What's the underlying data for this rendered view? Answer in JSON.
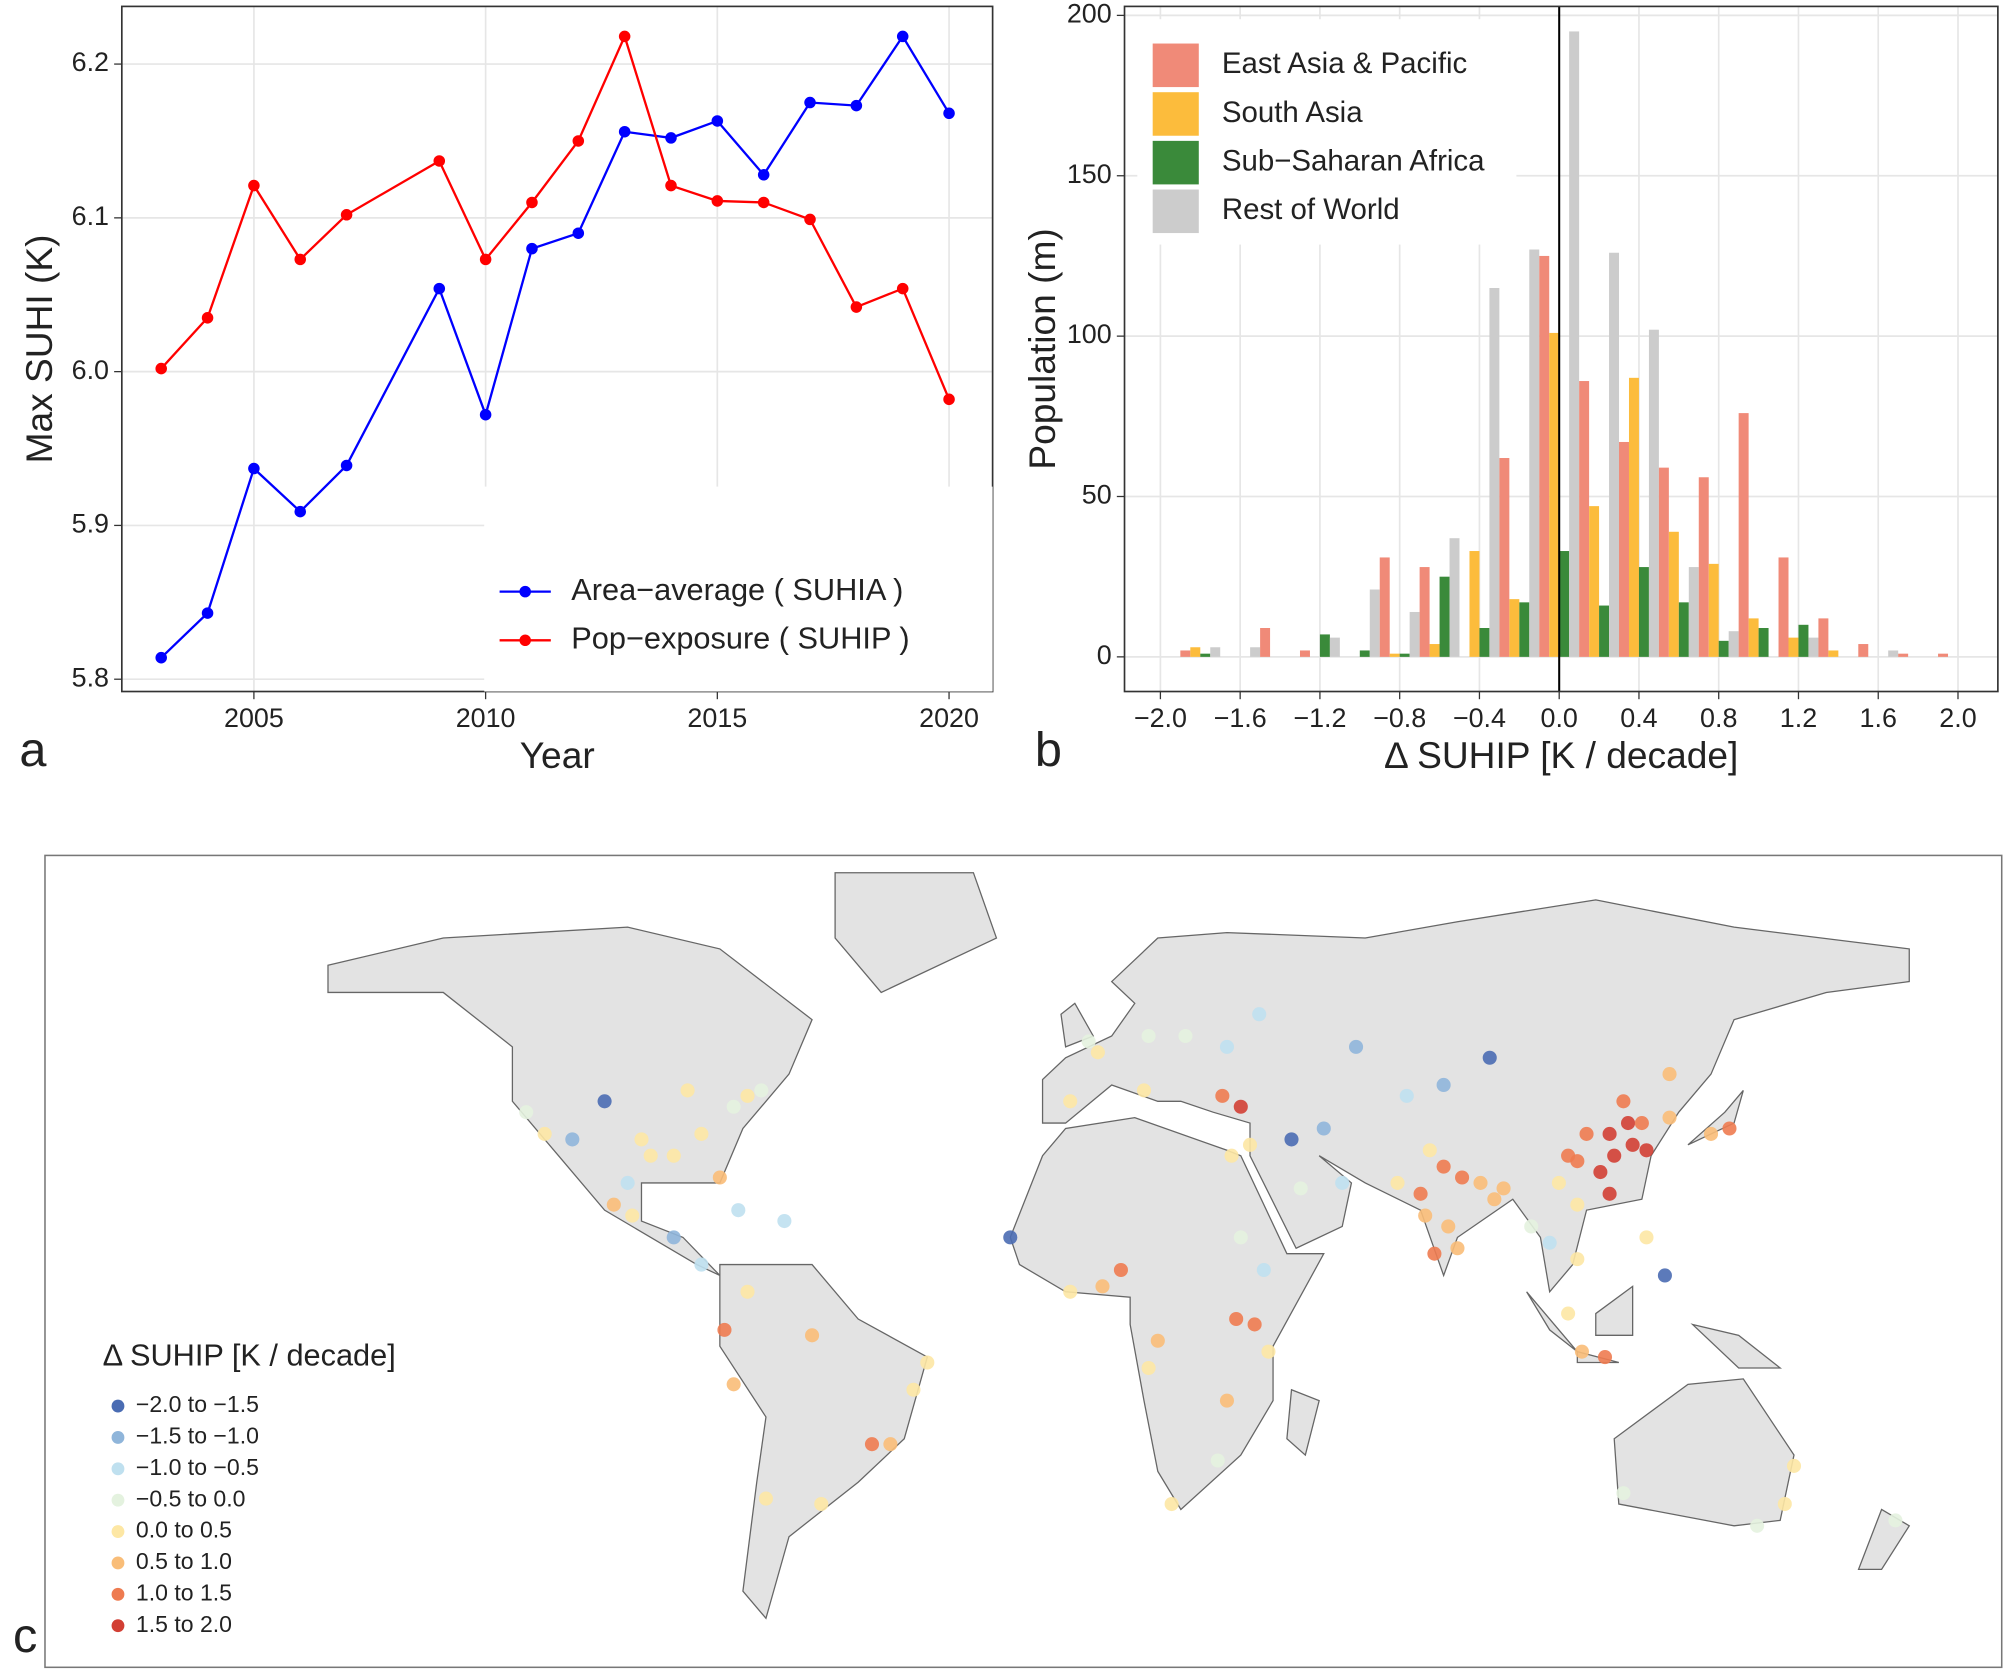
{
  "chart_data": [
    {
      "type": "line",
      "panel_label": "a",
      "xlabel": "Year",
      "ylabel": "Max SUHI (K)",
      "x": [
        2003,
        2004,
        2005,
        2006,
        2007,
        2009,
        2010,
        2011,
        2012,
        2013,
        2014,
        2015,
        2016,
        2017,
        2018,
        2019,
        2020
      ],
      "series": [
        {
          "name": "Area−average ( SUHIA )",
          "color": "#0000ff",
          "values": [
            5.814,
            5.843,
            5.937,
            5.909,
            5.939,
            6.054,
            5.972,
            6.08,
            6.09,
            6.156,
            6.152,
            6.163,
            6.128,
            6.175,
            6.173,
            6.218,
            6.168
          ]
        },
        {
          "name": "Pop−exposure ( SUHIP )",
          "color": "#ff0000",
          "values": [
            6.002,
            6.035,
            6.121,
            6.073,
            6.102,
            6.137,
            6.073,
            6.11,
            6.15,
            6.218,
            6.121,
            6.111,
            6.11,
            6.099,
            6.042,
            6.054,
            5.982
          ]
        }
      ],
      "xlim": [
        2002.15,
        2020.94
      ],
      "ylim": [
        5.792,
        6.2375
      ],
      "xticks": [
        2005,
        2010,
        2015,
        2020
      ],
      "yticks": [
        5.8,
        5.9,
        {
          "value": 6,
          "label": "6.0"
        },
        6.1,
        6.2
      ],
      "grid": true,
      "legend": "bottom-right"
    },
    {
      "type": "bar",
      "panel_label": "b",
      "xlabel": "Δ SUHIP [K / decade]",
      "ylabel": "Population (m)",
      "x": [
        -1.8,
        -1.6,
        -1.4,
        -1.2,
        -1.0,
        -0.8,
        -0.6,
        -0.4,
        -0.2,
        0,
        0.2,
        0.4,
        0.6,
        0.8,
        1.0,
        1.2,
        1.4,
        1.6,
        1.8,
        2.0
      ],
      "bin_width": 0.2,
      "series": [
        {
          "name": "East Asia & Pacific",
          "color": "#f08a78",
          "values": [
            2,
            0,
            9,
            2,
            0,
            31,
            28,
            0,
            62,
            125,
            86,
            67,
            59,
            56,
            76,
            31,
            12,
            4,
            1,
            1
          ]
        },
        {
          "name": "South Asia",
          "color": "#fcbc3c",
          "values": [
            3,
            0,
            0,
            0,
            0,
            1,
            4,
            33,
            18,
            101,
            47,
            87,
            39,
            29,
            12,
            6,
            2,
            0,
            0,
            0
          ]
        },
        {
          "name": "Sub−Saharan Africa",
          "color": "#3a8a3a",
          "values": [
            1,
            0,
            0,
            7,
            2,
            1,
            25,
            9,
            17,
            33,
            16,
            28,
            17,
            5,
            9,
            10,
            0,
            0,
            0,
            0
          ]
        },
        {
          "name": "Rest of World",
          "color": "#cccccc",
          "values": [
            3,
            3,
            0,
            6,
            21,
            14,
            37,
            115,
            127,
            195,
            126,
            102,
            28,
            8,
            0,
            6,
            0,
            2,
            0,
            0
          ]
        }
      ],
      "xlim": [
        -2.18,
        2.2
      ],
      "ylim": [
        -10.8,
        202.8
      ],
      "xticks": [
        {
          "value": -2,
          "label": "−2.0"
        },
        {
          "value": -1.6,
          "label": "−1.6"
        },
        {
          "value": -1.2,
          "label": "−1.2"
        },
        {
          "value": -0.8,
          "label": "−0.8"
        },
        {
          "value": -0.4,
          "label": "−0.4"
        },
        {
          "value": 0,
          "label": "0.0"
        },
        {
          "value": 0.4,
          "label": "0.4"
        },
        {
          "value": 0.8,
          "label": "0.8"
        },
        {
          "value": 1.2,
          "label": "1.2"
        },
        {
          "value": 1.6,
          "label": "1.6"
        },
        {
          "value": 2,
          "label": "2.0"
        }
      ],
      "yticks": [
        0,
        50,
        100,
        150,
        200
      ],
      "vline": 0,
      "grid": true,
      "legend": "top-left"
    },
    {
      "type": "map",
      "panel_label": "c",
      "legend_title": "Δ SUHIP [K / decade]",
      "legend": "bottom-left",
      "classes": [
        {
          "label": "−2.0 to −1.5",
          "color": "#4a6cb3"
        },
        {
          "label": "−1.5 to −1.0",
          "color": "#8fb5da"
        },
        {
          "label": "−1.0 to −0.5",
          "color": "#bfe0ef"
        },
        {
          "label": "−0.5 to 0.0",
          "color": "#e4f2df"
        },
        {
          "label": "0.0 to 0.5",
          "color": "#fde7a4"
        },
        {
          "label": "0.5 to 1.0",
          "color": "#f9bd78"
        },
        {
          "label": "1.0 to 1.5",
          "color": "#ee7b50"
        },
        {
          "label": "1.5 to 2.0",
          "color": "#d23f34"
        }
      ],
      "points": [
        [
          -74,
          41,
          4
        ],
        [
          -87,
          42,
          4
        ],
        [
          -118,
          34,
          4
        ],
        [
          -95,
          30,
          4
        ],
        [
          -84,
          34,
          4
        ],
        [
          -80,
          26,
          5
        ],
        [
          -105,
          40,
          0
        ],
        [
          -112,
          33,
          1
        ],
        [
          -97,
          33,
          4
        ],
        [
          -122,
          38,
          3
        ],
        [
          -77,
          39,
          3
        ],
        [
          -90,
          30,
          4
        ],
        [
          -71,
          42,
          3
        ],
        [
          -100,
          25,
          2
        ],
        [
          -99,
          19,
          4
        ],
        [
          -103,
          21,
          5
        ],
        [
          -90,
          15,
          1
        ],
        [
          -84,
          10,
          2
        ],
        [
          -74,
          5,
          4
        ],
        [
          -77,
          -12,
          5
        ],
        [
          -79,
          -2,
          6
        ],
        [
          -47,
          -23,
          6
        ],
        [
          -43,
          -23,
          5
        ],
        [
          -58,
          -34,
          4
        ],
        [
          -70,
          -33,
          4
        ],
        [
          -38,
          -13,
          4
        ],
        [
          -35,
          -8,
          4
        ],
        [
          -60,
          -3,
          5
        ],
        [
          -66,
          18,
          2
        ],
        [
          -76,
          20,
          2
        ],
        [
          0,
          51,
          3
        ],
        [
          2,
          49,
          4
        ],
        [
          13,
          52,
          3
        ],
        [
          12,
          42,
          4
        ],
        [
          -4,
          40,
          4
        ],
        [
          21,
          52,
          3
        ],
        [
          30,
          50,
          2
        ],
        [
          37,
          56,
          2
        ],
        [
          29,
          41,
          6
        ],
        [
          33,
          39,
          7
        ],
        [
          35,
          32,
          4
        ],
        [
          44,
          33,
          0
        ],
        [
          51,
          35,
          1
        ],
        [
          31,
          30,
          4
        ],
        [
          46,
          24,
          3
        ],
        [
          55,
          25,
          2
        ],
        [
          58,
          50,
          1
        ],
        [
          69,
          41,
          2
        ],
        [
          77,
          43,
          1
        ],
        [
          87,
          48,
          0
        ],
        [
          73,
          19,
          5
        ],
        [
          77,
          28,
          6
        ],
        [
          88,
          22,
          5
        ],
        [
          80,
          13,
          5
        ],
        [
          78,
          17,
          5
        ],
        [
          81,
          26,
          6
        ],
        [
          85,
          25,
          5
        ],
        [
          72,
          23,
          6
        ],
        [
          74,
          31,
          4
        ],
        [
          67,
          25,
          4
        ],
        [
          90,
          24,
          5
        ],
        [
          75,
          12,
          6
        ],
        [
          116,
          40,
          6
        ],
        [
          121,
          31,
          7
        ],
        [
          113,
          23,
          7
        ],
        [
          114,
          30,
          7
        ],
        [
          104,
          30,
          6
        ],
        [
          108,
          34,
          6
        ],
        [
          117,
          36,
          7
        ],
        [
          120,
          36,
          6
        ],
        [
          126,
          37,
          5
        ],
        [
          139,
          35,
          6
        ],
        [
          135,
          34,
          5
        ],
        [
          118,
          32,
          7
        ],
        [
          113,
          34,
          7
        ],
        [
          111,
          27,
          7
        ],
        [
          106,
          29,
          6
        ],
        [
          126,
          45,
          5
        ],
        [
          106,
          21,
          4
        ],
        [
          106,
          11,
          4
        ],
        [
          100,
          14,
          2
        ],
        [
          121,
          15,
          4
        ],
        [
          107,
          -6,
          5
        ],
        [
          112,
          -7,
          6
        ],
        [
          104,
          1,
          4
        ],
        [
          125,
          8,
          0
        ],
        [
          96,
          17,
          3
        ],
        [
          102,
          25,
          4
        ],
        [
          3,
          6,
          5
        ],
        [
          7,
          9,
          6
        ],
        [
          -17,
          15,
          0
        ],
        [
          -4,
          5,
          4
        ],
        [
          32,
          0,
          6
        ],
        [
          36,
          -1,
          6
        ],
        [
          39,
          -6,
          4
        ],
        [
          28,
          -26,
          3
        ],
        [
          18,
          -34,
          4
        ],
        [
          13,
          -9,
          4
        ],
        [
          15,
          -4,
          5
        ],
        [
          38,
          9,
          2
        ],
        [
          30,
          -15,
          5
        ],
        [
          33,
          15,
          3
        ],
        [
          151,
          -34,
          4
        ],
        [
          145,
          -38,
          3
        ],
        [
          153,
          -27,
          4
        ],
        [
          116,
          -32,
          3
        ],
        [
          175,
          -37,
          3
        ]
      ]
    }
  ]
}
